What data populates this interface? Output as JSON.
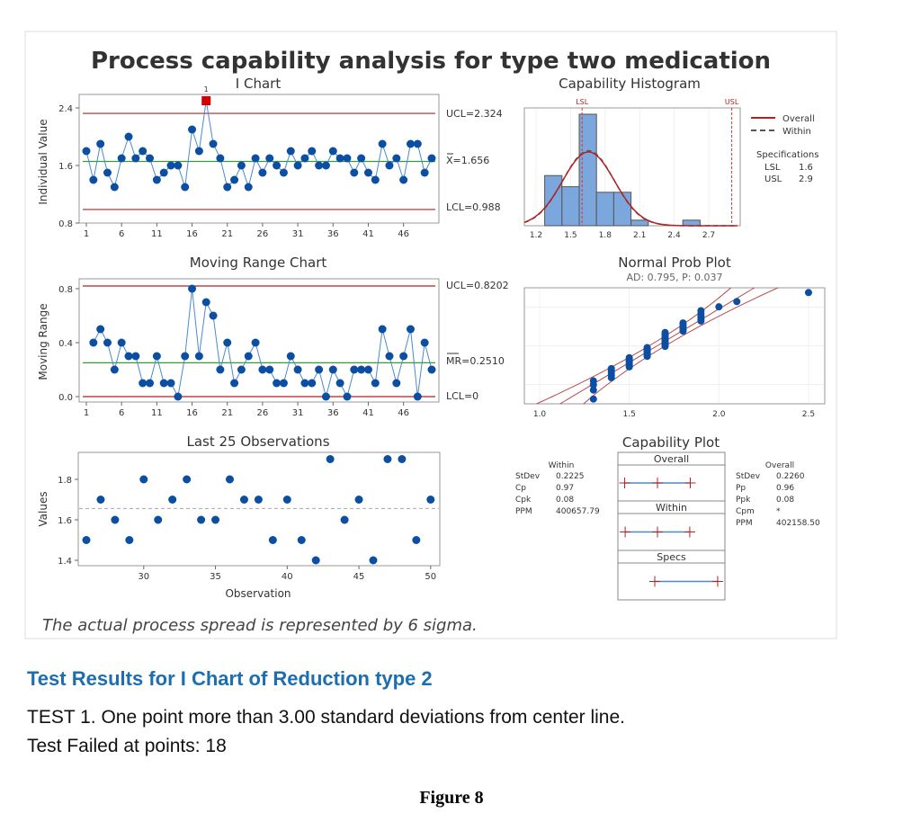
{
  "figure_title": "Process capability analysis for type two medication",
  "footnote": "The actual process spread is represented by 6 sigma.",
  "colors": {
    "points": "#0b4ea2",
    "line": "#4a8ad0",
    "limit": "#b22222",
    "center": "#3a9a3a",
    "bar": "#7ba7dc",
    "out_of_control": "#d40000"
  },
  "chart_data": [
    {
      "type": "line",
      "title": "I Chart",
      "ylabel": "Individual Value",
      "ylim": [
        0.8,
        2.5
      ],
      "yticks": [
        0.8,
        1.6,
        2.4
      ],
      "xticks": [
        1,
        6,
        11,
        16,
        21,
        26,
        31,
        36,
        41,
        46
      ],
      "ucl": 2.324,
      "center": 1.656,
      "lcl": 0.988,
      "ucl_label": "UCL=2.324",
      "center_label": "X=1.656",
      "lcl_label": "LCL=0.988",
      "flagged_point": 18,
      "flag_label": "1",
      "values": [
        1.8,
        1.4,
        1.9,
        1.5,
        1.3,
        1.7,
        2.0,
        1.7,
        1.8,
        1.7,
        1.4,
        1.5,
        1.6,
        1.6,
        1.3,
        2.1,
        1.8,
        2.5,
        1.9,
        1.7,
        1.3,
        1.4,
        1.6,
        1.3,
        1.7,
        1.5,
        1.7,
        1.6,
        1.5,
        1.8,
        1.6,
        1.7,
        1.8,
        1.6,
        1.6,
        1.8,
        1.7,
        1.7,
        1.5,
        1.7,
        1.5,
        1.4,
        1.9,
        1.6,
        1.7,
        1.4,
        1.9,
        1.9,
        1.5,
        1.7
      ]
    },
    {
      "type": "line",
      "title": "Moving Range Chart",
      "ylabel": "Moving Range",
      "ylim": [
        0,
        0.82
      ],
      "yticks": [
        0.0,
        0.4,
        0.8
      ],
      "xticks": [
        1,
        6,
        11,
        16,
        21,
        26,
        31,
        36,
        41,
        46
      ],
      "ucl": 0.8202,
      "center": 0.251,
      "lcl": 0,
      "ucl_label": "UCL=0.8202",
      "center_label": "MR=0.2510",
      "lcl_label": "LCL=0",
      "x_start": 2,
      "values": [
        0.4,
        0.5,
        0.4,
        0.2,
        0.4,
        0.3,
        0.3,
        0.1,
        0.1,
        0.3,
        0.1,
        0.1,
        0.0,
        0.3,
        0.8,
        0.3,
        0.7,
        0.6,
        0.2,
        0.4,
        0.1,
        0.2,
        0.3,
        0.4,
        0.2,
        0.2,
        0.1,
        0.1,
        0.3,
        0.2,
        0.1,
        0.1,
        0.2,
        0.0,
        0.2,
        0.1,
        0.0,
        0.2,
        0.2,
        0.2,
        0.1,
        0.5,
        0.3,
        0.1,
        0.3,
        0.5,
        0.0,
        0.4,
        0.2
      ]
    },
    {
      "type": "scatter",
      "title": "Last 25 Observations",
      "xlabel": "Observation",
      "ylabel": "Values",
      "yticks": [
        1.4,
        1.6,
        1.8
      ],
      "xticks": [
        30,
        35,
        40,
        45,
        50
      ],
      "mean": 1.656,
      "x": [
        26,
        27,
        28,
        29,
        30,
        31,
        32,
        33,
        34,
        35,
        36,
        37,
        38,
        39,
        40,
        41,
        42,
        43,
        44,
        45,
        46,
        47,
        48,
        49,
        50
      ],
      "values": [
        1.5,
        1.7,
        1.6,
        1.5,
        1.8,
        1.6,
        1.7,
        1.8,
        1.6,
        1.6,
        1.8,
        1.7,
        1.7,
        1.5,
        1.7,
        1.5,
        1.4,
        1.9,
        1.6,
        1.7,
        1.4,
        1.9,
        1.9,
        1.5,
        1.7
      ]
    },
    {
      "type": "bar",
      "title": "Capability Histogram",
      "xlim": [
        1.1,
        2.95
      ],
      "xticks": [
        1.2,
        1.5,
        1.8,
        2.1,
        2.4,
        2.7
      ],
      "bin_start": 1.275,
      "bin_width": 0.15,
      "counts": [
        9,
        7,
        20,
        6,
        6,
        1,
        0,
        0,
        1
      ],
      "lsl": 1.6,
      "usl": 2.9,
      "lsl_label": "LSL",
      "usl_label": "USL",
      "mean": 1.656,
      "stdev_overall": 0.226,
      "stdev_within": 0.2225,
      "legend": [
        "Overall",
        "Within"
      ],
      "legend_placement": "right",
      "specs_title": "Specifications",
      "specs": [
        {
          "label": "LSL",
          "value": "1.6"
        },
        {
          "label": "USL",
          "value": "2.9"
        }
      ]
    },
    {
      "type": "scatter",
      "title": "Normal Prob Plot",
      "subtitle": "AD: 0.795, P: 0.037",
      "xticks": [
        1.0,
        1.5,
        2.0,
        2.5
      ],
      "source": "I Chart values"
    },
    {
      "type": "table",
      "title": "Capability Plot",
      "headers": [
        "Overall",
        "Within",
        "Specs"
      ],
      "within": {
        "title": "Within",
        "rows": [
          [
            "StDev",
            "0.2225"
          ],
          [
            "Cp",
            "0.97"
          ],
          [
            "Cpk",
            "0.08"
          ],
          [
            "PPM",
            "400657.79"
          ]
        ]
      },
      "overall": {
        "title": "Overall",
        "rows": [
          [
            "StDev",
            "0.2260"
          ],
          [
            "Pp",
            "0.96"
          ],
          [
            "Ppk",
            "0.08"
          ],
          [
            "Cpm",
            "*"
          ],
          [
            "PPM",
            "402158.50"
          ]
        ]
      }
    }
  ],
  "test_results": {
    "heading": "Test Results for I Chart of Reduction type 2",
    "line1": "TEST 1. One point more than 3.00 standard deviations from center line.",
    "line2": "Test Failed at points:  18"
  },
  "caption": "Figure 8"
}
